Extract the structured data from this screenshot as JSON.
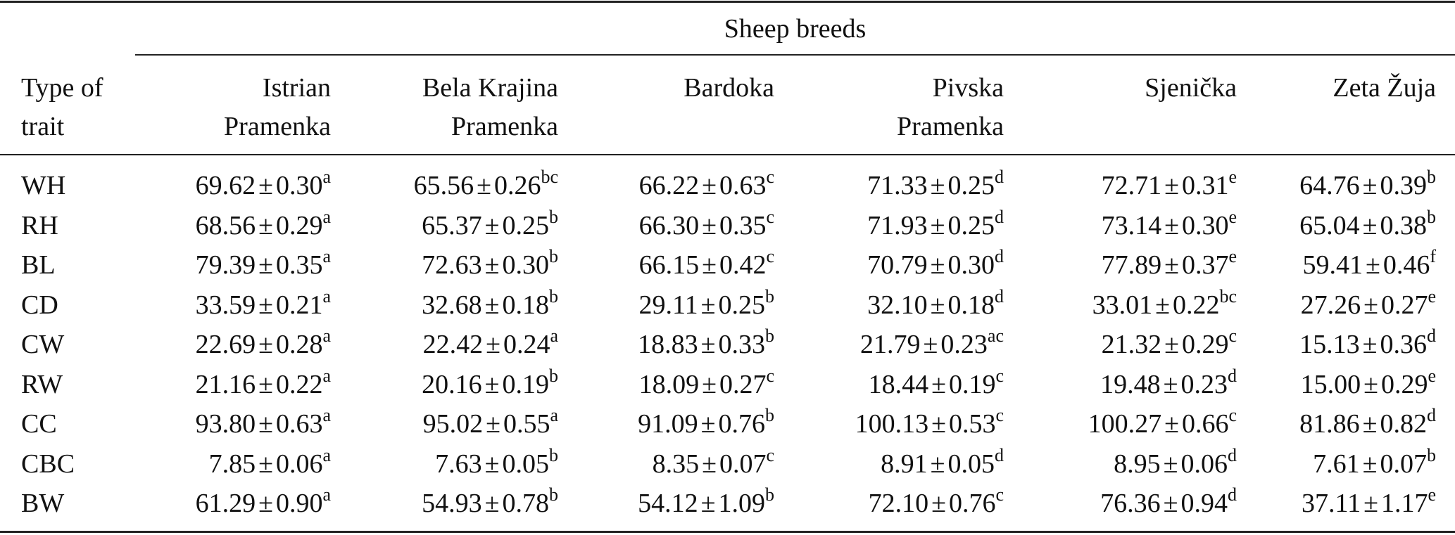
{
  "table": {
    "group_header": "Sheep breeds",
    "row_header": [
      "Type of",
      "trait"
    ],
    "columns": [
      {
        "line1": "Istrian",
        "line2": "Pramenka"
      },
      {
        "line1": "Bela Krajina",
        "line2": "Pramenka"
      },
      {
        "line1": "Bardoka",
        "line2": ""
      },
      {
        "line1": "Pivska",
        "line2": "Pramenka"
      },
      {
        "line1": "Sjenička",
        "line2": ""
      },
      {
        "line1": "Zeta Žuja",
        "line2": ""
      }
    ],
    "pm": "±",
    "rows": [
      {
        "trait": "WH",
        "cells": [
          {
            "mean": "69.62",
            "se": "0.30",
            "sup": "a"
          },
          {
            "mean": "65.56",
            "se": "0.26",
            "sup": "bc"
          },
          {
            "mean": "66.22",
            "se": "0.63",
            "sup": "c"
          },
          {
            "mean": "71.33",
            "se": "0.25",
            "sup": "d"
          },
          {
            "mean": "72.71",
            "se": "0.31",
            "sup": "e"
          },
          {
            "mean": "64.76",
            "se": "0.39",
            "sup": "b"
          }
        ]
      },
      {
        "trait": "RH",
        "cells": [
          {
            "mean": "68.56",
            "se": "0.29",
            "sup": "a"
          },
          {
            "mean": "65.37",
            "se": "0.25",
            "sup": "b"
          },
          {
            "mean": "66.30",
            "se": "0.35",
            "sup": "c"
          },
          {
            "mean": "71.93",
            "se": "0.25",
            "sup": "d"
          },
          {
            "mean": "73.14",
            "se": "0.30",
            "sup": "e"
          },
          {
            "mean": "65.04",
            "se": "0.38",
            "sup": "b"
          }
        ]
      },
      {
        "trait": "BL",
        "cells": [
          {
            "mean": "79.39",
            "se": "0.35",
            "sup": "a"
          },
          {
            "mean": "72.63",
            "se": "0.30",
            "sup": "b"
          },
          {
            "mean": "66.15",
            "se": "0.42",
            "sup": "c"
          },
          {
            "mean": "70.79",
            "se": "0.30",
            "sup": "d"
          },
          {
            "mean": "77.89",
            "se": "0.37",
            "sup": "e"
          },
          {
            "mean": "59.41",
            "se": "0.46",
            "sup": "f"
          }
        ]
      },
      {
        "trait": "CD",
        "cells": [
          {
            "mean": "33.59",
            "se": "0.21",
            "sup": "a"
          },
          {
            "mean": "32.68",
            "se": "0.18",
            "sup": "b"
          },
          {
            "mean": "29.11",
            "se": "0.25",
            "sup": "b"
          },
          {
            "mean": "32.10",
            "se": "0.18",
            "sup": "d"
          },
          {
            "mean": "33.01",
            "se": "0.22",
            "sup": "bc"
          },
          {
            "mean": "27.26",
            "se": "0.27",
            "sup": "e"
          }
        ]
      },
      {
        "trait": "CW",
        "cells": [
          {
            "mean": "22.69",
            "se": "0.28",
            "sup": "a"
          },
          {
            "mean": "22.42",
            "se": "0.24",
            "sup": "a"
          },
          {
            "mean": "18.83",
            "se": "0.33",
            "sup": "b"
          },
          {
            "mean": "21.79",
            "se": "0.23",
            "sup": "ac"
          },
          {
            "mean": "21.32",
            "se": "0.29",
            "sup": "c"
          },
          {
            "mean": "15.13",
            "se": "0.36",
            "sup": "d"
          }
        ]
      },
      {
        "trait": "RW",
        "cells": [
          {
            "mean": "21.16",
            "se": "0.22",
            "sup": "a"
          },
          {
            "mean": "20.16",
            "se": "0.19",
            "sup": "b"
          },
          {
            "mean": "18.09",
            "se": "0.27",
            "sup": "c"
          },
          {
            "mean": "18.44",
            "se": "0.19",
            "sup": "c"
          },
          {
            "mean": "19.48",
            "se": "0.23",
            "sup": "d"
          },
          {
            "mean": "15.00",
            "se": "0.29",
            "sup": "e"
          }
        ]
      },
      {
        "trait": "CC",
        "cells": [
          {
            "mean": "93.80",
            "se": "0.63",
            "sup": "a"
          },
          {
            "mean": "95.02",
            "se": "0.55",
            "sup": "a"
          },
          {
            "mean": "91.09",
            "se": "0.76",
            "sup": "b"
          },
          {
            "mean": "100.13",
            "se": "0.53",
            "sup": "c"
          },
          {
            "mean": "100.27",
            "se": "0.66",
            "sup": "c"
          },
          {
            "mean": "81.86",
            "se": "0.82",
            "sup": "d"
          }
        ]
      },
      {
        "trait": "CBC",
        "cells": [
          {
            "mean": "7.85",
            "se": "0.06",
            "sup": "a"
          },
          {
            "mean": "7.63",
            "se": "0.05",
            "sup": "b"
          },
          {
            "mean": "8.35",
            "se": "0.07",
            "sup": "c"
          },
          {
            "mean": "8.91",
            "se": "0.05",
            "sup": "d"
          },
          {
            "mean": "8.95",
            "se": "0.06",
            "sup": "d"
          },
          {
            "mean": "7.61",
            "se": "0.07",
            "sup": "b"
          }
        ]
      },
      {
        "trait": "BW",
        "cells": [
          {
            "mean": "61.29",
            "se": "0.90",
            "sup": "a"
          },
          {
            "mean": "54.93",
            "se": "0.78",
            "sup": "b"
          },
          {
            "mean": "54.12",
            "se": "1.09",
            "sup": "b"
          },
          {
            "mean": "72.10",
            "se": "0.76",
            "sup": "c"
          },
          {
            "mean": "76.36",
            "se": "0.94",
            "sup": "d"
          },
          {
            "mean": "37.11",
            "se": "1.17",
            "sup": "e"
          }
        ]
      }
    ]
  }
}
